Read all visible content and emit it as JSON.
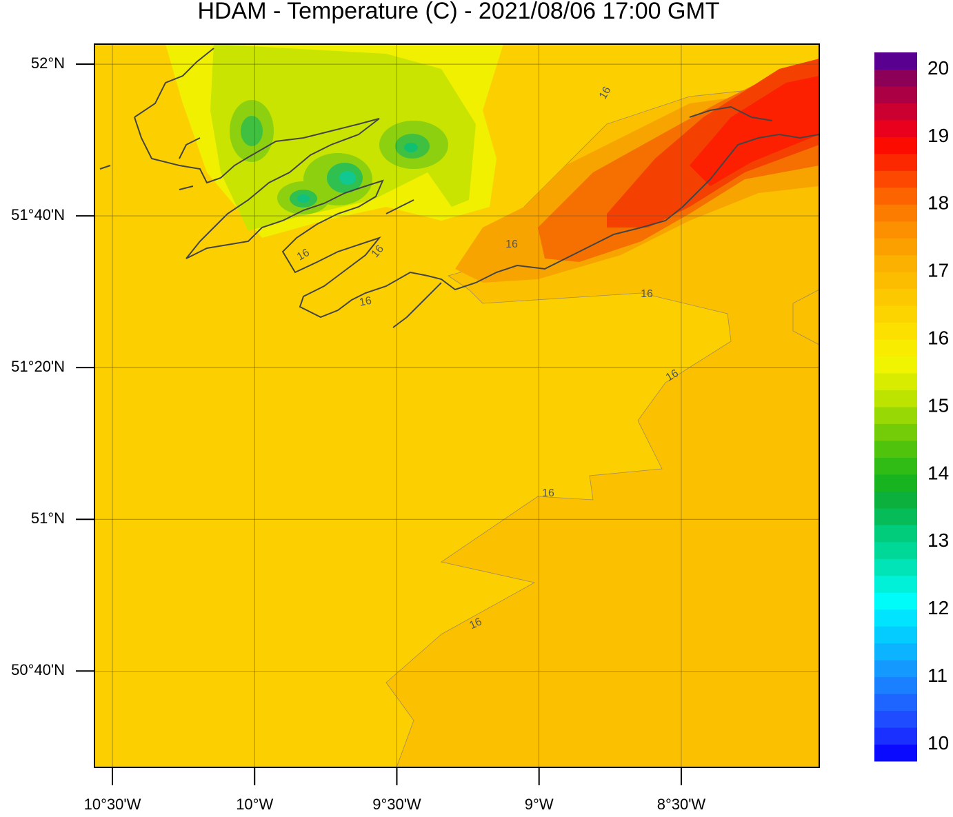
{
  "title": "HDAM - Temperature (C)  -  2021/08/06  17:00 GMT",
  "map": {
    "lon_range": [
      -10.563,
      -8.015
    ],
    "lat_range": [
      50.455,
      52.044
    ],
    "lon_ticks": [
      {
        "value": -10.5,
        "label": "10°30'W"
      },
      {
        "value": -10,
        "label": "10°W"
      },
      {
        "value": -9.5,
        "label": "9°30'W"
      },
      {
        "value": -9,
        "label": "9°W"
      },
      {
        "value": -8.5,
        "label": "8°30'W"
      }
    ],
    "lat_ticks": [
      {
        "value": 52,
        "label": "52°N"
      },
      {
        "value": 51.6667,
        "label": "51°40'N"
      },
      {
        "value": 51.3333,
        "label": "51°20'N"
      },
      {
        "value": 51,
        "label": "51°N"
      },
      {
        "value": 50.6667,
        "label": "50°40'N"
      }
    ],
    "contour_labels": [
      "16",
      "16",
      "16",
      "16",
      "16",
      "16",
      "16",
      "16",
      "16"
    ]
  },
  "colorbar": {
    "range": [
      9.75,
      20.25
    ],
    "ticks": [
      10,
      11,
      12,
      13,
      14,
      15,
      16,
      17,
      18,
      19,
      20
    ],
    "colors": [
      "#0a0aff",
      "#1a30ff",
      "#1f4cff",
      "#1e64ff",
      "#1a80ff",
      "#149aff",
      "#0cb4ff",
      "#04ccff",
      "#00e4ff",
      "#00fcf8",
      "#00f0d8",
      "#00e4b8",
      "#00d898",
      "#00cc7c",
      "#06bc58",
      "#0cb03c",
      "#18b420",
      "#30bc14",
      "#50c40c",
      "#74cc08",
      "#98d804",
      "#bce400",
      "#d8ec00",
      "#f0f400",
      "#f8ec00",
      "#fce000",
      "#fcd400",
      "#fcc800",
      "#fcbc00",
      "#fcb000",
      "#fca000",
      "#fc9000",
      "#fc7c00",
      "#fc6400",
      "#fc4800",
      "#fc2800",
      "#fc0c00",
      "#e8001c",
      "#cc0030",
      "#ac0044",
      "#8c0058",
      "#5a0090"
    ]
  }
}
